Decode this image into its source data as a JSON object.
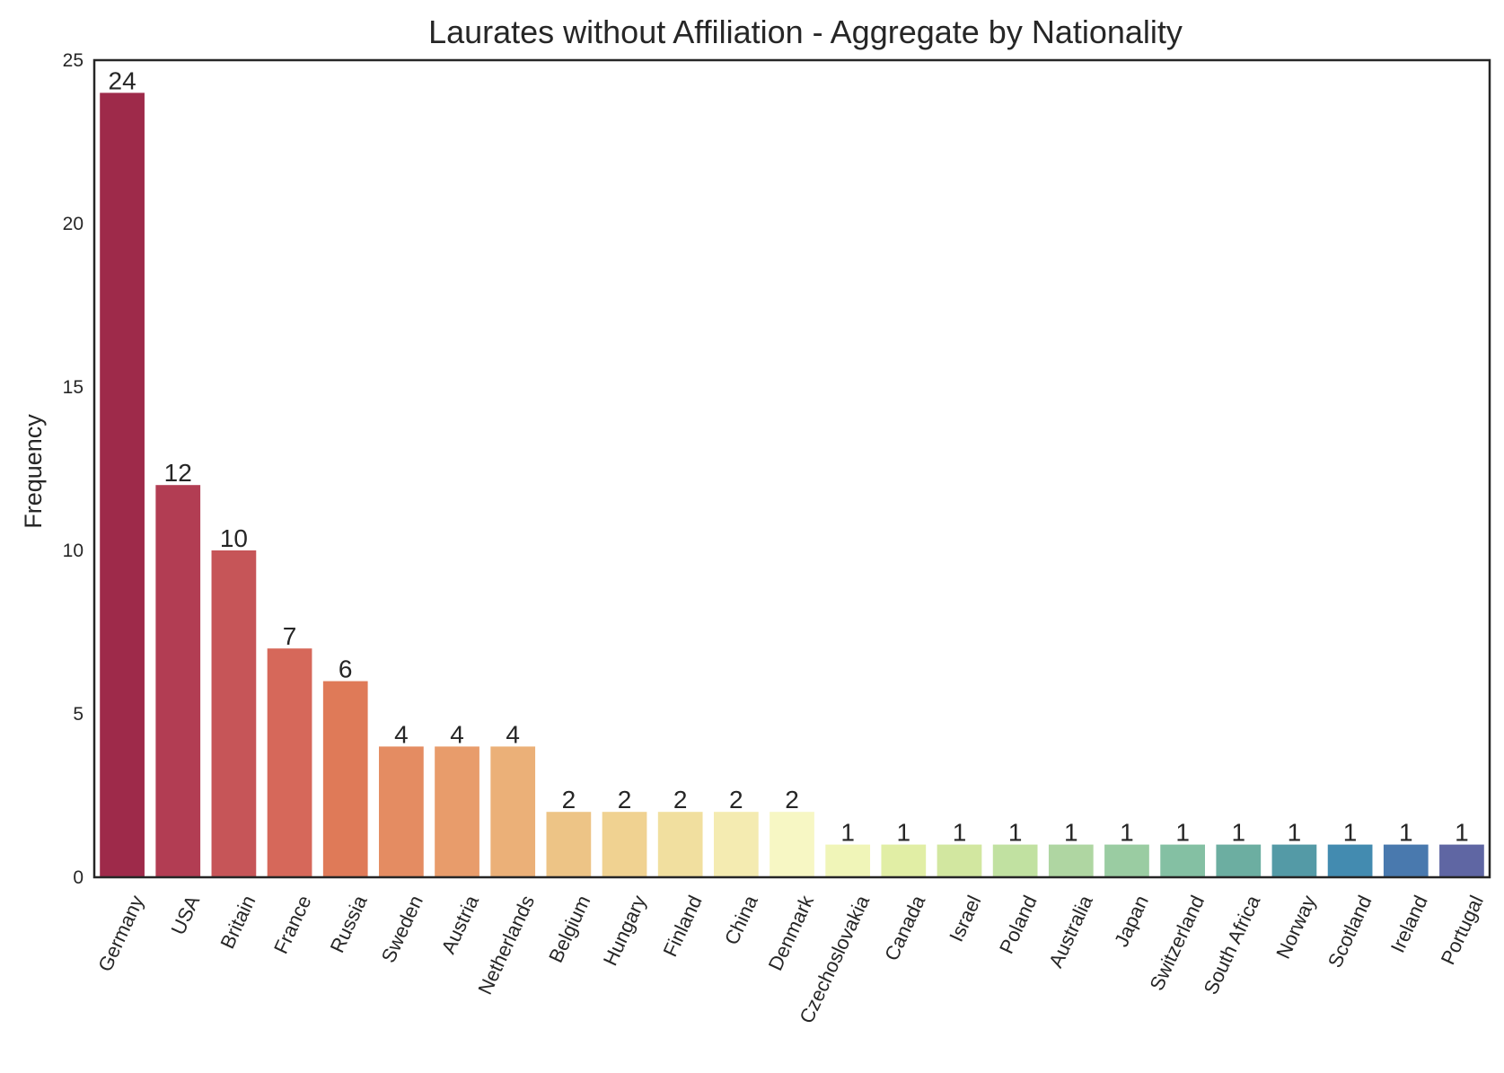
{
  "chart_data": {
    "type": "bar",
    "title": "Laurates without Affiliation - Aggregate by Nationality",
    "xlabel": "",
    "ylabel": "Frequency",
    "ylim": [
      0,
      25
    ],
    "yticks": [
      0,
      5,
      10,
      15,
      20,
      25
    ],
    "grid": false,
    "legend": "none",
    "categories": [
      "Germany",
      "USA",
      "Britain",
      "France",
      "Russia",
      "Sweden",
      "Austria",
      "Netherlands",
      "Belgium",
      "Hungary",
      "Finland",
      "China",
      "Denmark",
      "Czechoslovakia",
      "Canada",
      "Israel",
      "Poland",
      "Australia",
      "Japan",
      "Switzerland",
      "South Africa",
      "Norway",
      "Scotland",
      "Ireland",
      "Portugal"
    ],
    "values": [
      24,
      12,
      10,
      7,
      6,
      4,
      4,
      4,
      2,
      2,
      2,
      2,
      2,
      1,
      1,
      1,
      1,
      1,
      1,
      1,
      1,
      1,
      1,
      1,
      1
    ],
    "colors": [
      "#9e2a4a",
      "#b23d53",
      "#c65558",
      "#d6685a",
      "#df7a58",
      "#e48c62",
      "#e89c6b",
      "#ebb078",
      "#edc486",
      "#f0d291",
      "#f1df9f",
      "#f4ebb1",
      "#f7f7c4",
      "#f0f5b8",
      "#e1eea5",
      "#d2e7a0",
      "#c1e1a1",
      "#afd6a2",
      "#9acca2",
      "#84c0a3",
      "#6caea1",
      "#549aa6",
      "#438bb0",
      "#4979ae",
      "#5f66a3"
    ]
  }
}
